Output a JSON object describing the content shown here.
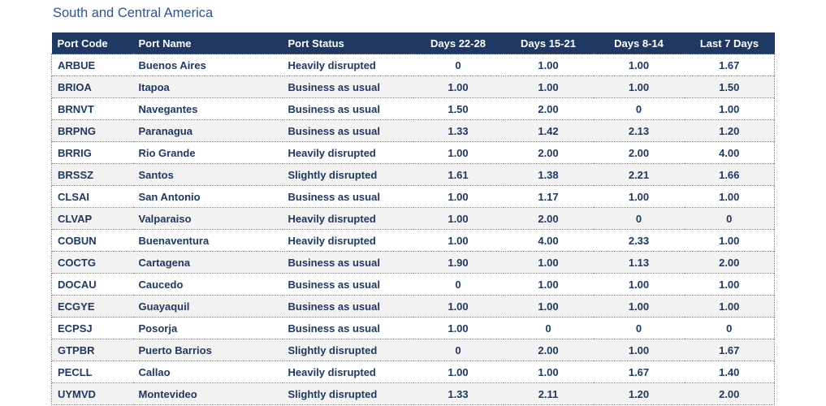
{
  "title": "South and Central America",
  "table": {
    "headers": {
      "port_code": "Port Code",
      "port_name": "Port Name",
      "port_status": "Port Status",
      "days_22_28": "Days 22-28",
      "days_15_21": "Days 15-21",
      "days_8_14": "Days 8-14",
      "last_7_days": "Last 7 Days"
    },
    "rows": [
      {
        "port_code": "ARBUE",
        "port_name": "Buenos Aires",
        "port_status": "Heavily disrupted",
        "values": [
          "0",
          "1.00",
          "1.00",
          "1.67"
        ]
      },
      {
        "port_code": "BRIOA",
        "port_name": "Itapoa",
        "port_status": "Business as usual",
        "values": [
          "1.00",
          "1.00",
          "1.00",
          "1.50"
        ]
      },
      {
        "port_code": "BRNVT",
        "port_name": "Navegantes",
        "port_status": "Business as usual",
        "values": [
          "1.50",
          "2.00",
          "0",
          "1.00"
        ]
      },
      {
        "port_code": "BRPNG",
        "port_name": "Paranagua",
        "port_status": "Business as usual",
        "values": [
          "1.33",
          "1.42",
          "2.13",
          "1.20"
        ]
      },
      {
        "port_code": "BRRIG",
        "port_name": "Rio Grande",
        "port_status": "Heavily disrupted",
        "values": [
          "1.00",
          "2.00",
          "2.00",
          "4.00"
        ]
      },
      {
        "port_code": "BRSSZ",
        "port_name": "Santos",
        "port_status": "Slightly disrupted",
        "values": [
          "1.61",
          "1.38",
          "2.21",
          "1.66"
        ]
      },
      {
        "port_code": "CLSAI",
        "port_name": "San Antonio",
        "port_status": "Business as usual",
        "values": [
          "1.00",
          "1.17",
          "1.00",
          "1.00"
        ]
      },
      {
        "port_code": "CLVAP",
        "port_name": "Valparaiso",
        "port_status": "Heavily disrupted",
        "values": [
          "1.00",
          "2.00",
          "0",
          "0"
        ]
      },
      {
        "port_code": "COBUN",
        "port_name": "Buenaventura",
        "port_status": "Heavily disrupted",
        "values": [
          "1.00",
          "4.00",
          "2.33",
          "1.00"
        ]
      },
      {
        "port_code": "COCTG",
        "port_name": "Cartagena",
        "port_status": "Business as usual",
        "values": [
          "1.90",
          "1.00",
          "1.13",
          "2.00"
        ]
      },
      {
        "port_code": "DOCAU",
        "port_name": "Caucedo",
        "port_status": "Business as usual",
        "values": [
          "0",
          "1.00",
          "1.00",
          "1.00"
        ]
      },
      {
        "port_code": "ECGYE",
        "port_name": "Guayaquil",
        "port_status": "Business as usual",
        "values": [
          "1.00",
          "1.00",
          "1.00",
          "1.00"
        ]
      },
      {
        "port_code": "ECPSJ",
        "port_name": "Posorja",
        "port_status": "Business as usual",
        "values": [
          "1.00",
          "0",
          "0",
          "0"
        ]
      },
      {
        "port_code": "GTPBR",
        "port_name": "Puerto Barrios",
        "port_status": "Slightly disrupted",
        "values": [
          "0",
          "2.00",
          "1.00",
          "1.67"
        ]
      },
      {
        "port_code": "PECLL",
        "port_name": "Callao",
        "port_status": "Heavily disrupted",
        "values": [
          "1.00",
          "1.00",
          "1.67",
          "1.40"
        ]
      },
      {
        "port_code": "UYMVD",
        "port_name": "Montevideo",
        "port_status": "Slightly disrupted",
        "values": [
          "1.33",
          "2.11",
          "1.20",
          "2.00"
        ]
      }
    ]
  },
  "colors": {
    "title_text": "#2F5496",
    "header_bg": "#1F3864",
    "header_text": "#FFFFFF",
    "cell_text": "#1F3864",
    "row_bg": "#FFFFFF",
    "row_alt_bg": "#F2F2F2",
    "divider": "#8A8A8A"
  }
}
